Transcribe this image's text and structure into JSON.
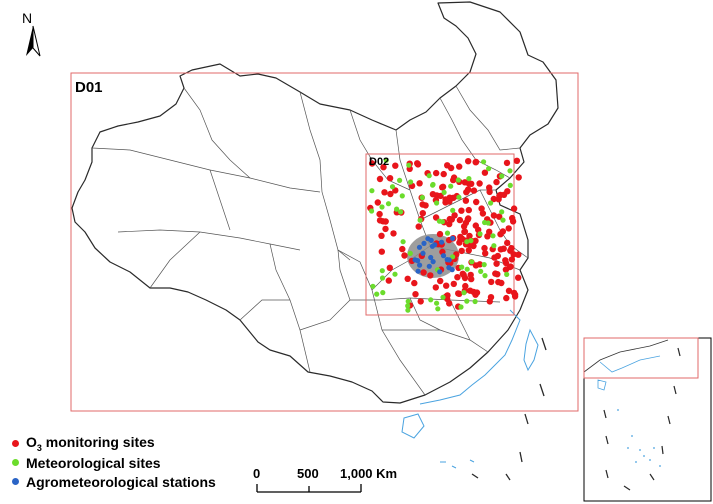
{
  "north_label": "N",
  "domains": {
    "d01": "D01",
    "d02": "D02"
  },
  "legend": [
    {
      "prefix": "O",
      "sub": "3",
      "suffix": " monitoring sites",
      "color": "#e8151b",
      "icon": "red-dot"
    },
    {
      "prefix": "Meteorological sites",
      "sub": "",
      "suffix": "",
      "color": "#6bdc2c",
      "icon": "green-dot"
    },
    {
      "prefix": "Agrometeorological stations",
      "sub": "",
      "suffix": "",
      "color": "#2a64c6",
      "icon": "blue-dot"
    }
  ],
  "scale_bar": {
    "labels": [
      "0",
      "500",
      "1,000 Km"
    ]
  },
  "colors": {
    "o3": "#e8151b",
    "meteo": "#6bdc2c",
    "agro": "#2a64c6",
    "study_area": "#8d8d8d",
    "domain_box": "#e06a6a",
    "ocean_islands": "#4aa3e0",
    "boundary": "#333333"
  }
}
